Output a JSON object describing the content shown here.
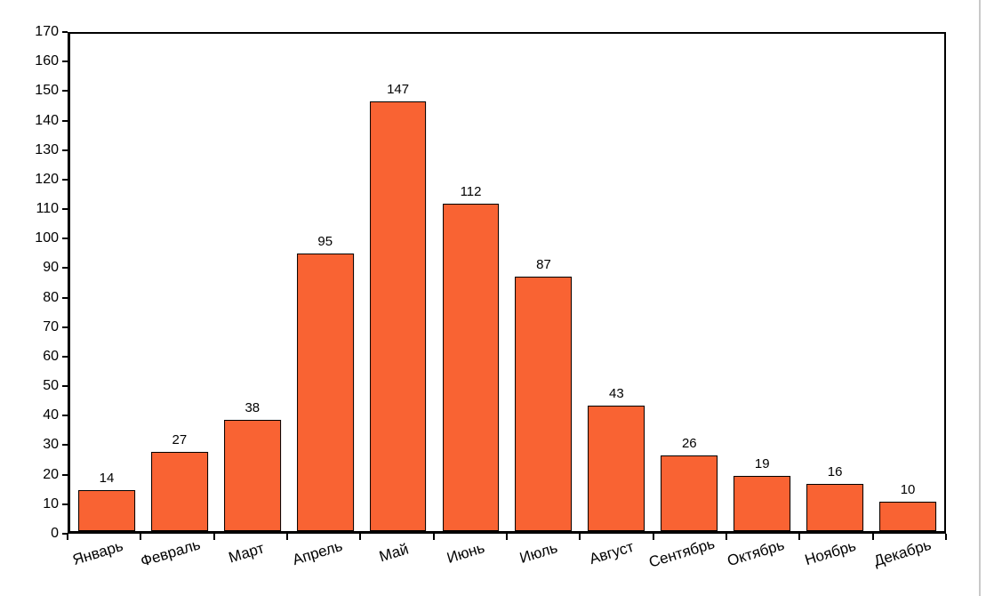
{
  "page": {
    "background": "#ffffff",
    "right_edge_line_color": "#c9c9c9"
  },
  "chart_data": {
    "type": "bar",
    "title": "",
    "xlabel": "",
    "ylabel": "",
    "categories": [
      "Январь",
      "Февраль",
      "Март",
      "Апрель",
      "Май",
      "Июнь",
      "Июль",
      "Август",
      "Сентябрь",
      "Октябрь",
      "Ноябрь",
      "Декабрь"
    ],
    "values": [
      14,
      27,
      38,
      95,
      147,
      112,
      87,
      43,
      26,
      19,
      16,
      10
    ],
    "ylim": [
      0,
      170
    ],
    "ytick_step": 10,
    "ytick_labels": [
      "0",
      "10",
      "20",
      "30",
      "40",
      "50",
      "60",
      "70",
      "80",
      "90",
      "100",
      "110",
      "120",
      "130",
      "140",
      "150",
      "160",
      "170"
    ],
    "bar_color": "#F96333",
    "bar_border_color": "#000000",
    "axis_color": "#000000",
    "value_labels_shown": true,
    "x_label_rotation_deg": -17,
    "legend": "none",
    "grid": "off"
  }
}
